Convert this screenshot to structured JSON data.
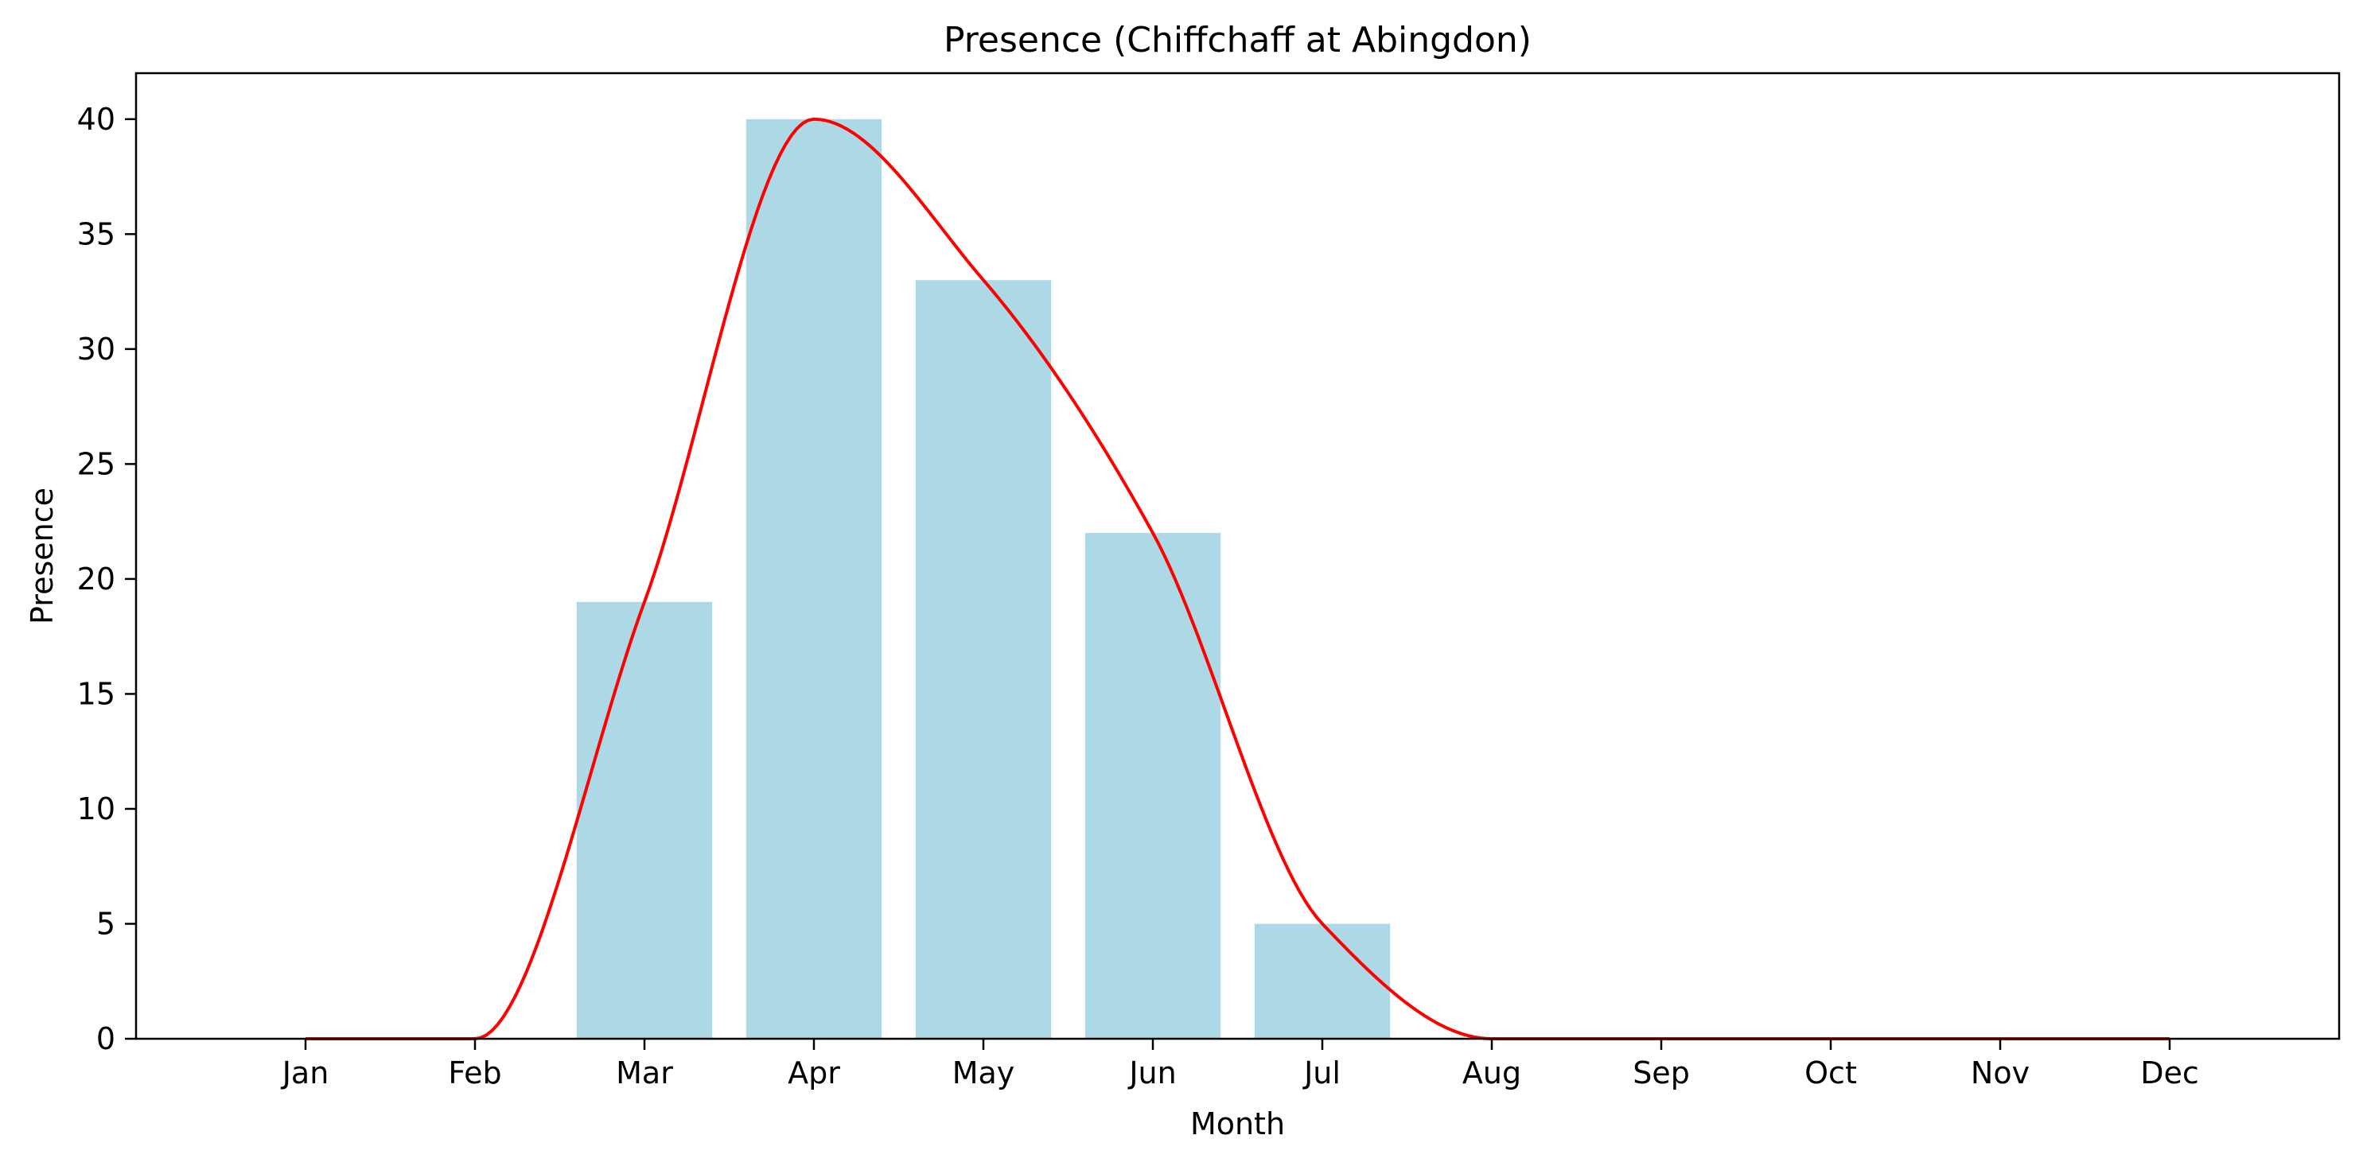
{
  "chart_data": {
    "type": "bar",
    "title": "Presence (Chiffchaff at Abingdon)",
    "xlabel": "Month",
    "ylabel": "Presence",
    "categories": [
      "Jan",
      "Feb",
      "Mar",
      "Apr",
      "May",
      "Jun",
      "Jul",
      "Aug",
      "Sep",
      "Oct",
      "Nov",
      "Dec"
    ],
    "values": [
      0,
      0,
      19,
      40,
      33,
      22,
      5,
      0,
      0,
      0,
      0,
      0
    ],
    "ylim": [
      0,
      42
    ],
    "yticks": [
      0,
      5,
      10,
      15,
      20,
      25,
      30,
      35,
      40
    ],
    "grid": false,
    "colors": {
      "bar": "#add8e6",
      "line": "#ff0000",
      "axis": "#000000"
    },
    "overlay": {
      "type": "line",
      "smooth": true,
      "values": [
        0,
        0,
        19,
        40,
        33,
        22,
        5,
        0,
        0,
        0,
        0,
        0
      ]
    }
  }
}
